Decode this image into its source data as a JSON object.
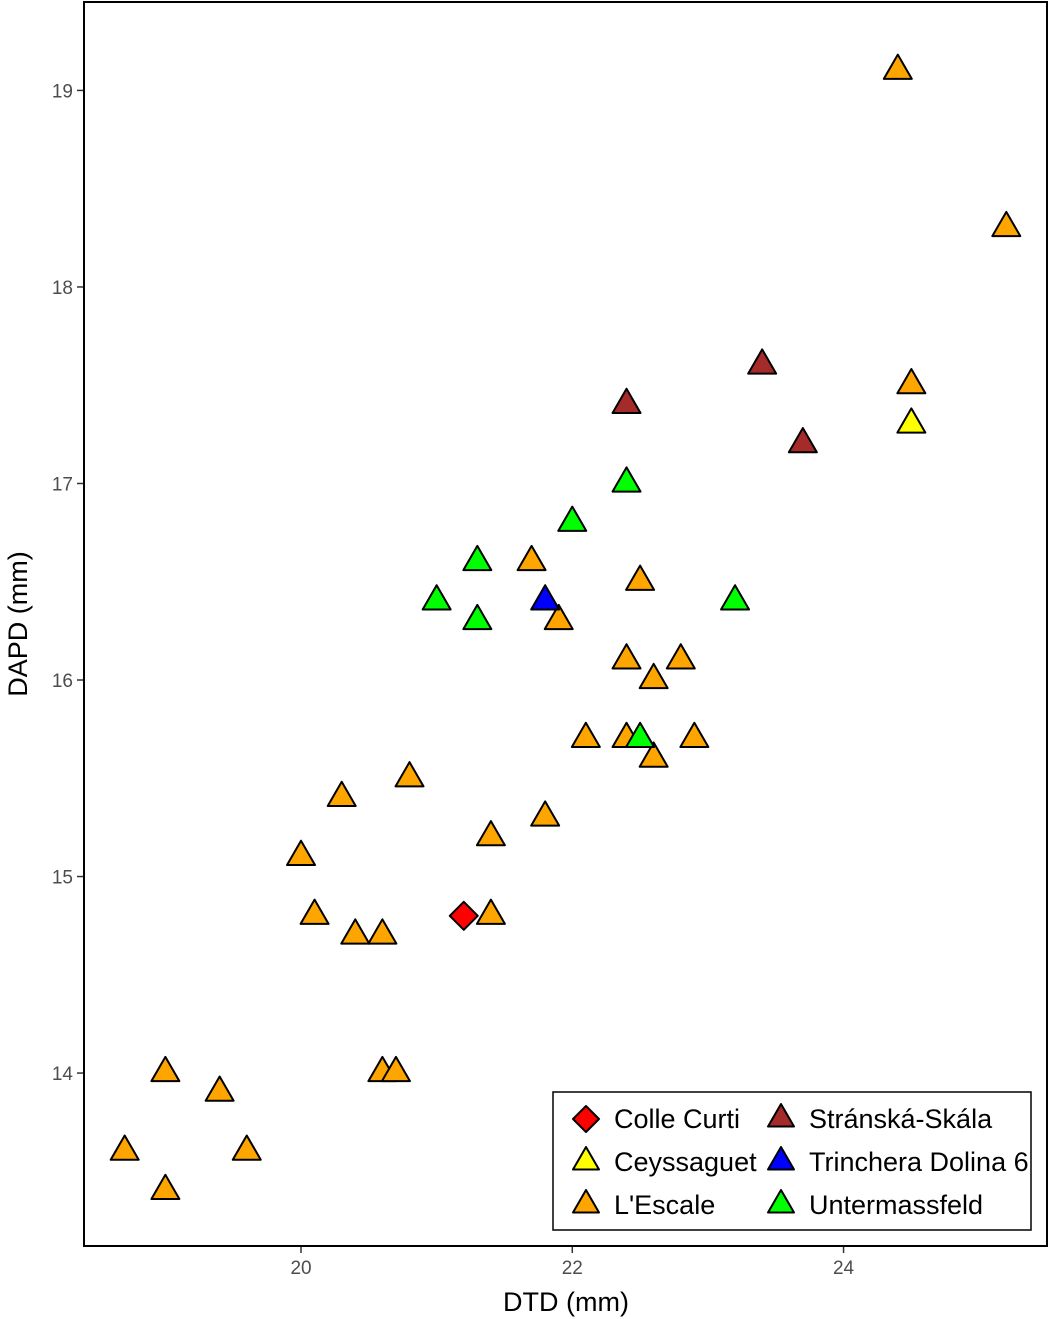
{
  "chart_data": {
    "type": "scatter",
    "title": "",
    "xlabel": "DTD (mm)",
    "ylabel": "DAPD (mm)",
    "xlim": [
      18.4,
      25.5
    ],
    "ylim": [
      13.12,
      19.45
    ],
    "x_ticks": [
      20,
      22,
      24
    ],
    "y_ticks": [
      14,
      15,
      16,
      17,
      18,
      19
    ],
    "grid": false,
    "legend_position": "bottom-right",
    "series": [
      {
        "name": "Colle Curti",
        "marker": "diamond",
        "color": "#ff0000",
        "points": [
          [
            21.2,
            14.8
          ]
        ]
      },
      {
        "name": "Ceyssaguet",
        "marker": "triangle",
        "color": "#ffff00",
        "points": [
          [
            24.5,
            17.3
          ]
        ]
      },
      {
        "name": "L'Escale",
        "marker": "triangle",
        "color": "#ffa500",
        "points": [
          [
            24.4,
            19.1
          ],
          [
            25.2,
            18.3
          ],
          [
            24.5,
            17.5
          ],
          [
            21.7,
            16.6
          ],
          [
            22.5,
            16.5
          ],
          [
            21.9,
            16.3
          ],
          [
            22.4,
            16.1
          ],
          [
            22.8,
            16.1
          ],
          [
            22.6,
            16.0
          ],
          [
            22.1,
            15.7
          ],
          [
            22.4,
            15.7
          ],
          [
            22.9,
            15.7
          ],
          [
            22.6,
            15.6
          ],
          [
            20.8,
            15.5
          ],
          [
            20.3,
            15.4
          ],
          [
            21.8,
            15.3
          ],
          [
            21.4,
            15.2
          ],
          [
            20.0,
            15.1
          ],
          [
            20.1,
            14.8
          ],
          [
            21.4,
            14.8
          ],
          [
            20.4,
            14.7
          ],
          [
            20.6,
            14.7
          ],
          [
            19.0,
            14.0
          ],
          [
            20.6,
            14.0
          ],
          [
            20.7,
            14.0
          ],
          [
            19.4,
            13.9
          ],
          [
            18.7,
            13.6
          ],
          [
            19.6,
            13.6
          ],
          [
            19.0,
            13.4
          ]
        ]
      },
      {
        "name": "Stránská-Skála",
        "marker": "triangle",
        "color": "#a52a2a",
        "points": [
          [
            23.4,
            17.6
          ],
          [
            22.4,
            17.4
          ],
          [
            23.7,
            17.2
          ]
        ]
      },
      {
        "name": "Trinchera Dolina 6",
        "marker": "triangle",
        "color": "#0000ff",
        "points": [
          [
            21.8,
            16.4
          ]
        ]
      },
      {
        "name": "Untermassfeld",
        "marker": "triangle",
        "color": "#00ff00",
        "points": [
          [
            22.4,
            17.0
          ],
          [
            22.0,
            16.8
          ],
          [
            21.3,
            16.6
          ],
          [
            21.0,
            16.4
          ],
          [
            23.2,
            16.4
          ],
          [
            21.3,
            16.3
          ],
          [
            22.5,
            15.7
          ]
        ]
      }
    ],
    "legend_order": [
      "Colle Curti",
      "Ceyssaguet",
      "L'Escale",
      "Stránská-Skála",
      "Trinchera Dolina 6",
      "Untermassfeld"
    ]
  }
}
